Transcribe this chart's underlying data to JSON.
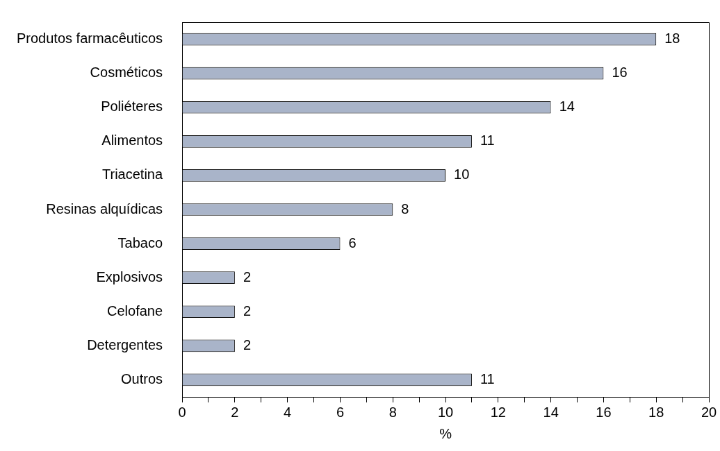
{
  "chart_data": {
    "type": "bar",
    "orientation": "horizontal",
    "xlabel": "%",
    "categories": [
      "Produtos farmacêuticos",
      "Cosméticos",
      "Poliéteres",
      "Alimentos",
      "Triacetina",
      "Resinas alquídicas",
      "Tabaco",
      "Explosivos",
      "Celofane",
      "Detergentes",
      "Outros"
    ],
    "values": [
      18,
      16,
      14,
      11,
      10,
      8,
      6,
      2,
      2,
      2,
      11
    ],
    "color": "#a9b4c9",
    "xlim": [
      0,
      20
    ],
    "xticks": [
      0,
      {
        "value": 1,
        "label": null
      },
      2,
      {
        "value": 3,
        "label": null
      },
      4,
      {
        "value": 5,
        "label": null
      },
      6,
      {
        "value": 7,
        "label": null
      },
      8,
      {
        "value": 9,
        "label": null
      },
      10,
      {
        "value": 11,
        "label": null
      },
      12,
      {
        "value": 13,
        "label": null
      },
      14,
      {
        "value": 15,
        "label": null
      },
      16,
      {
        "value": 17,
        "label": null
      },
      18,
      {
        "value": 19,
        "label": null
      },
      20
    ],
    "data_labels": true,
    "grid": false,
    "legend": false
  }
}
